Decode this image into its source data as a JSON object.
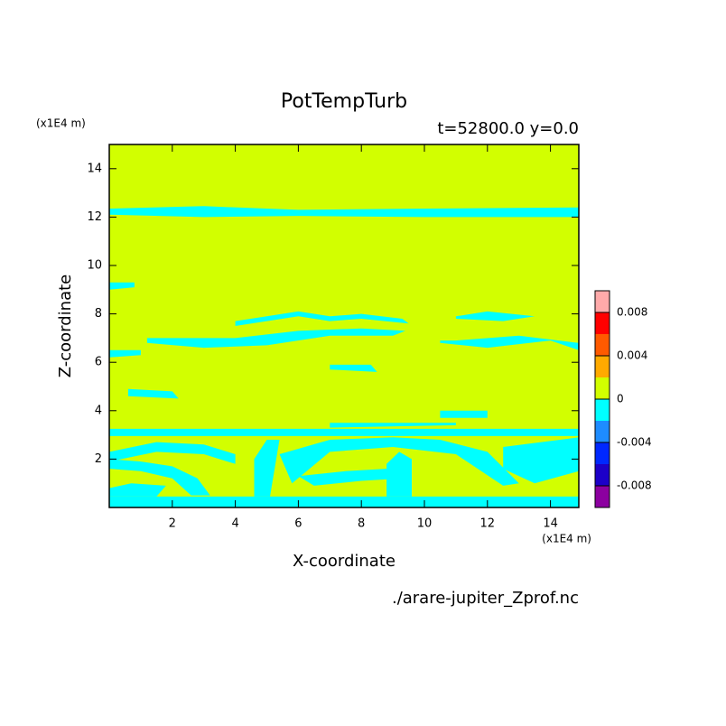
{
  "chart_data": {
    "type": "contour",
    "title": "PotTempTurb",
    "subtitle": "t=52800.0 y=0.0",
    "x_label": "X-coordinate",
    "y_label": "Z-coordinate",
    "x_unit": "(x1E4 m)",
    "y_unit": "(x1E4 m)",
    "source": "./arare-jupiter_Zprof.nc",
    "xlim": [
      0,
      14.9
    ],
    "ylim": [
      0,
      15
    ],
    "xticks": [
      2,
      4,
      6,
      8,
      10,
      12,
      14
    ],
    "yticks": [
      2,
      4,
      6,
      8,
      10,
      12,
      14
    ],
    "colorbar": {
      "bounds": [
        -0.01,
        -0.008,
        -0.006,
        -0.004,
        -0.002,
        0,
        0.002,
        0.004,
        0.006,
        0.008,
        0.01
      ],
      "colors": [
        "#8c00a0",
        "#1c00c8",
        "#0028ff",
        "#1e8cff",
        "#00ffff",
        "#d2ff00",
        "#ffaa00",
        "#ff5a00",
        "#ff0000",
        "#ffaaaa"
      ],
      "ticks": [
        -0.008,
        -0.004,
        0,
        0.004,
        0.008
      ]
    },
    "background_level": 5,
    "regions": [
      {
        "level": 4,
        "x": [
          0,
          3,
          6,
          10,
          14.9,
          14.9,
          10,
          6,
          3,
          0
        ],
        "z": [
          12.1,
          12.0,
          12.05,
          12.0,
          12.0,
          12.4,
          12.35,
          12.3,
          12.45,
          12.35
        ]
      },
      {
        "level": 4,
        "x": [
          0,
          14.9,
          14.9,
          0
        ],
        "z": [
          0,
          0,
          0.45,
          0.45
        ]
      },
      {
        "level": 4,
        "x": [
          0,
          14.9,
          14.9,
          0
        ],
        "z": [
          2.95,
          2.95,
          3.25,
          3.25
        ]
      },
      {
        "level": 4,
        "x": [
          0,
          1.5,
          3,
          4,
          4,
          3,
          1.5,
          0
        ],
        "z": [
          2.3,
          2.7,
          2.6,
          2.2,
          1.8,
          2.2,
          2.3,
          1.9
        ]
      },
      {
        "level": 4,
        "x": [
          0,
          1,
          2,
          2.6,
          3.2,
          2.8,
          2,
          1,
          0
        ],
        "z": [
          1.6,
          1.5,
          1.2,
          0.5,
          0.5,
          1.2,
          1.7,
          1.9,
          2.0
        ]
      },
      {
        "level": 4,
        "x": [
          4.6,
          5.1,
          5.4,
          5.0,
          4.6
        ],
        "z": [
          0.45,
          0.45,
          2.8,
          2.8,
          2.0
        ]
      },
      {
        "level": 4,
        "x": [
          5.4,
          7,
          9,
          10.5,
          12,
          13,
          12.5,
          11,
          9,
          7,
          5.8
        ],
        "z": [
          2.2,
          2.8,
          2.9,
          2.8,
          2.3,
          1.0,
          0.9,
          2.2,
          2.5,
          2.3,
          1.0
        ]
      },
      {
        "level": 4,
        "x": [
          6,
          7.5,
          8.8,
          9.3,
          8,
          6.5
        ],
        "z": [
          1.3,
          1.5,
          1.6,
          1.2,
          1.1,
          0.9
        ]
      },
      {
        "level": 4,
        "x": [
          8.8,
          9.6,
          9.6,
          9.2,
          8.8
        ],
        "z": [
          0.45,
          0.45,
          2.0,
          2.3,
          1.8
        ]
      },
      {
        "level": 4,
        "x": [
          12.5,
          14.9,
          14.9,
          13.5,
          12.5
        ],
        "z": [
          2.5,
          2.9,
          1.5,
          1.0,
          1.6
        ]
      },
      {
        "level": 4,
        "x": [
          0,
          1.5,
          1.8,
          0.7,
          0
        ],
        "z": [
          0.45,
          0.45,
          0.9,
          1.0,
          0.8
        ]
      },
      {
        "level": 4,
        "x": [
          1.2,
          3,
          5,
          7,
          9,
          9.4,
          8,
          6,
          4,
          2,
          1.2
        ],
        "z": [
          6.8,
          6.6,
          6.7,
          7.1,
          7.1,
          7.3,
          7.4,
          7.3,
          7.0,
          7.0,
          7.0
        ]
      },
      {
        "level": 4,
        "x": [
          4,
          5,
          6,
          7,
          8,
          9.5,
          9.3,
          8,
          7,
          6,
          5,
          4
        ],
        "z": [
          7.5,
          7.7,
          7.9,
          7.7,
          7.8,
          7.6,
          7.8,
          8.0,
          7.9,
          8.1,
          7.9,
          7.7
        ]
      },
      {
        "level": 4,
        "x": [
          10.5,
          12,
          14,
          14.9,
          14.9,
          13,
          11,
          10.5
        ],
        "z": [
          6.8,
          6.6,
          6.9,
          6.5,
          6.8,
          7.1,
          6.9,
          6.9
        ]
      },
      {
        "level": 4,
        "x": [
          11,
          12.5,
          13.5,
          12,
          11
        ],
        "z": [
          7.8,
          7.7,
          7.9,
          8.1,
          7.9
        ]
      },
      {
        "level": 4,
        "x": [
          0,
          1,
          1,
          0
        ],
        "z": [
          6.2,
          6.3,
          6.5,
          6.5
        ]
      },
      {
        "level": 4,
        "x": [
          0.6,
          2.2,
          2,
          0.6
        ],
        "z": [
          4.6,
          4.5,
          4.8,
          4.9
        ]
      },
      {
        "level": 4,
        "x": [
          7,
          8.5,
          8.3,
          7
        ],
        "z": [
          5.7,
          5.6,
          5.9,
          5.9
        ]
      },
      {
        "level": 4,
        "x": [
          0,
          0.8,
          0.8,
          0
        ],
        "z": [
          9.0,
          9.1,
          9.3,
          9.3
        ]
      },
      {
        "level": 4,
        "x": [
          10.5,
          12,
          12,
          10.5
        ],
        "z": [
          3.7,
          3.7,
          4.0,
          4.0
        ]
      },
      {
        "level": 4,
        "x": [
          7,
          11,
          11,
          7
        ],
        "z": [
          3.3,
          3.4,
          3.5,
          3.5
        ]
      }
    ]
  }
}
